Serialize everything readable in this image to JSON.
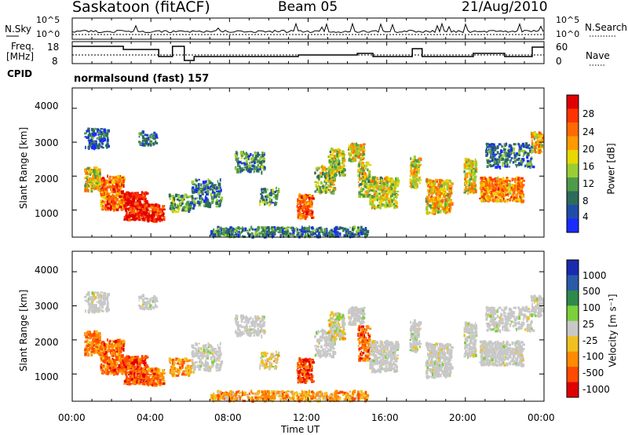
{
  "header": {
    "station": "Saskatoon (fitACF)",
    "beam": "Beam 05",
    "date": "21/Aug/2010"
  },
  "noise_panel": {
    "left_label": "N.Sky",
    "right_label": "N.Search",
    "left_ticks": [
      "10^5",
      "10^0"
    ],
    "right_ticks": [
      "10^5",
      "10^0"
    ]
  },
  "freq_panel": {
    "left_label_1": "Freq.",
    "left_label_2": "[MHz]",
    "left_ticks": [
      "18",
      "8"
    ],
    "right_ticks": [
      "60",
      "0"
    ],
    "right_label": "Nave"
  },
  "cpid": {
    "label": "CPID",
    "value": "normalsound (fast) 157"
  },
  "chart_data": [
    {
      "type": "heatmap",
      "quantity": "Power",
      "ylabel": "Slant Range [km]",
      "yticks": [
        "1000",
        "2000",
        "3000",
        "4000"
      ],
      "ylim": [
        200,
        4600
      ],
      "xlim_hours": [
        0,
        24
      ],
      "colorbar_label": "Power [dB]",
      "colorbar_ticks": [
        "4",
        "8",
        "12",
        "16",
        "20",
        "24",
        "28"
      ],
      "colorbar_colors": [
        "#1a2bff",
        "#1f4da8",
        "#2e6b5a",
        "#4f9a4b",
        "#9acd32",
        "#e8d800",
        "#ff9a00",
        "#ff6a00",
        "#ff3300",
        "#e00000"
      ]
    },
    {
      "type": "heatmap",
      "quantity": "Velocity",
      "ylabel": "Slant Range [km]",
      "yticks": [
        "1000",
        "2000",
        "3000",
        "4000"
      ],
      "ylim": [
        200,
        4600
      ],
      "xlim_hours": [
        0,
        24
      ],
      "colorbar_label": "Velocity [m s⁻¹]",
      "colorbar_ticks": [
        "1000",
        "500",
        "100",
        "25",
        "-25",
        "-100",
        "-500",
        "-1000"
      ],
      "colorbar_colors": [
        "#1a2bb0",
        "#2a5aa8",
        "#2f8a4a",
        "#7cd03a",
        "#c8c8c8",
        "#f0c020",
        "#ff8c00",
        "#ff4a00",
        "#e00000"
      ]
    }
  ],
  "xaxis": {
    "ticks": [
      "00:00",
      "04:00",
      "08:00",
      "12:00",
      "16:00",
      "20:00",
      "00:00"
    ],
    "label": "Time UT"
  }
}
